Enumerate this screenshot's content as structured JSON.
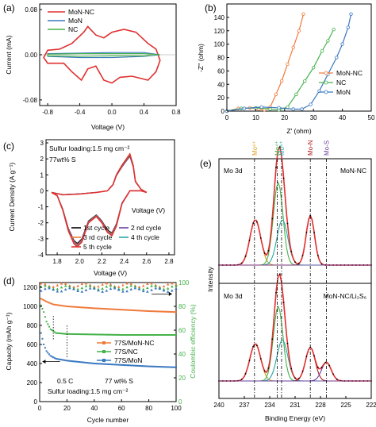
{
  "colors": {
    "red": "#e03030",
    "blue": "#3a78c0",
    "green": "#44b24a",
    "orange": "#f07a3c",
    "black": "#000000",
    "purple": "#6a3fa0",
    "teal": "#2aa5a5",
    "gold": "#e0a020",
    "darkred": "#b01818"
  },
  "chart_data": [
    {
      "id": "a",
      "panel_label": "(a)",
      "type": "line",
      "xlabel": "Voltage (V)",
      "ylabel": "Current (mA)",
      "xlim": [
        -0.9,
        0.8
      ],
      "ylim": [
        -0.09,
        0.09
      ],
      "x_ticks": [
        "-0.8",
        "-0.4",
        "0.0",
        "0.4",
        "0.8"
      ],
      "y_ticks": [
        "0.08",
        "0.00",
        "-0.08"
      ],
      "series": [
        {
          "name": "MoN-NC",
          "points": [
            [
              -0.8,
              -0.015
            ],
            [
              -0.6,
              -0.015
            ],
            [
              -0.5,
              -0.03
            ],
            [
              -0.38,
              -0.045
            ],
            [
              -0.3,
              -0.025
            ],
            [
              -0.2,
              -0.02
            ],
            [
              -0.1,
              -0.045
            ],
            [
              0.0,
              -0.05
            ],
            [
              0.1,
              -0.04
            ],
            [
              0.25,
              -0.038
            ],
            [
              0.45,
              -0.045
            ],
            [
              0.55,
              -0.03
            ],
            [
              0.6,
              -0.01
            ],
            [
              0.55,
              0.01
            ],
            [
              0.45,
              0.02
            ],
            [
              0.3,
              0.04
            ],
            [
              0.15,
              0.045
            ],
            [
              0.0,
              0.04
            ],
            [
              -0.1,
              0.03
            ],
            [
              -0.2,
              0.035
            ],
            [
              -0.3,
              0.05
            ],
            [
              -0.35,
              0.04
            ],
            [
              -0.5,
              0.02
            ],
            [
              -0.65,
              0.01
            ],
            [
              -0.8,
              0.008
            ],
            [
              -0.85,
              -0.005
            ],
            [
              -0.8,
              -0.015
            ]
          ]
        },
        {
          "name": "MoN",
          "points": [
            [
              -0.8,
              -0.003
            ],
            [
              -0.4,
              -0.005
            ],
            [
              0.0,
              -0.005
            ],
            [
              0.4,
              -0.003
            ],
            [
              0.6,
              0.0
            ],
            [
              0.4,
              0.004
            ],
            [
              0.0,
              0.004
            ],
            [
              -0.4,
              0.003
            ],
            [
              -0.8,
              0.002
            ],
            [
              -0.8,
              -0.003
            ]
          ]
        },
        {
          "name": "NC",
          "points": [
            [
              -0.8,
              -0.002
            ],
            [
              -0.4,
              -0.003
            ],
            [
              0.0,
              -0.002
            ],
            [
              0.4,
              -0.002
            ],
            [
              0.6,
              0.0
            ],
            [
              0.4,
              0.002
            ],
            [
              0.0,
              0.002
            ],
            [
              -0.4,
              0.002
            ],
            [
              -0.8,
              0.001
            ],
            [
              -0.8,
              -0.002
            ]
          ]
        }
      ]
    },
    {
      "id": "b",
      "panel_label": "(b)",
      "type": "line",
      "xlabel": "Z' (ohm)",
      "ylabel": "-Z'' (ohm)",
      "xlim": [
        0,
        50
      ],
      "ylim": [
        0,
        160
      ],
      "x_ticks": [
        "0",
        "10",
        "20",
        "30",
        "40",
        "50"
      ],
      "y_ticks": [
        "0",
        "20",
        "40",
        "60",
        "80",
        "100",
        "120",
        "140"
      ],
      "series": [
        {
          "name": "MoN-NC",
          "points": [
            [
              0,
              0
            ],
            [
              4,
              4
            ],
            [
              8,
              5
            ],
            [
              11,
              3
            ],
            [
              13,
              2
            ],
            [
              15,
              6
            ],
            [
              17,
              25
            ],
            [
              19,
              45
            ],
            [
              21,
              70
            ],
            [
              23,
              95
            ],
            [
              25,
              120
            ],
            [
              26.5,
              145
            ]
          ]
        },
        {
          "name": "NC",
          "points": [
            [
              0,
              0
            ],
            [
              5,
              4
            ],
            [
              10,
              5
            ],
            [
              15,
              3
            ],
            [
              18,
              2
            ],
            [
              21,
              6
            ],
            [
              24,
              25
            ],
            [
              27,
              45
            ],
            [
              30,
              65
            ],
            [
              33,
              90
            ],
            [
              35,
              105
            ],
            [
              37,
              122
            ]
          ]
        },
        {
          "name": "MoN",
          "points": [
            [
              0,
              0
            ],
            [
              6,
              4
            ],
            [
              12,
              6
            ],
            [
              18,
              5
            ],
            [
              23,
              3
            ],
            [
              26,
              3
            ],
            [
              29,
              10
            ],
            [
              32,
              30
            ],
            [
              35,
              55
            ],
            [
              38,
              80
            ],
            [
              40,
              100
            ],
            [
              42,
              125
            ],
            [
              43,
              145
            ]
          ]
        }
      ]
    },
    {
      "id": "c",
      "panel_label": "(c)",
      "type": "line",
      "xlabel": "Voltage (V)",
      "ylabel": "Current Density (A g⁻¹)",
      "xlim": [
        1.7,
        2.85
      ],
      "ylim": [
        -4,
        3.2
      ],
      "x_ticks": [
        "1.8",
        "2.0",
        "2.2",
        "2.4",
        "2.6",
        "2.8"
      ],
      "y_ticks": [
        "3",
        "2",
        "1",
        "0",
        "-1",
        "-2",
        "-3",
        "-4"
      ],
      "annotations": [
        "Sulfur loading:1.5 mg cm⁻²",
        "77wt% S",
        "Voltage (V)"
      ],
      "series": [
        {
          "name": "1st cycle"
        },
        {
          "name": "2 nd cycle"
        },
        {
          "name": "3 rd cycle"
        },
        {
          "name": "4 th cycle"
        },
        {
          "name": "5 th cycle"
        }
      ],
      "base_curve": [
        [
          1.75,
          -0.1
        ],
        [
          1.8,
          -0.3
        ],
        [
          1.85,
          -1.2
        ],
        [
          1.9,
          -2.5
        ],
        [
          1.95,
          -3.3
        ],
        [
          1.98,
          -3.5
        ],
        [
          2.02,
          -3.2
        ],
        [
          2.08,
          -2.0
        ],
        [
          2.15,
          -1.6
        ],
        [
          2.2,
          -2.0
        ],
        [
          2.25,
          -2.6
        ],
        [
          2.29,
          -2.8
        ],
        [
          2.33,
          -2.2
        ],
        [
          2.38,
          -0.8
        ],
        [
          2.45,
          0.0
        ],
        [
          2.55,
          0.0
        ],
        [
          2.6,
          -0.1
        ],
        [
          2.55,
          0.1
        ],
        [
          2.5,
          0.6
        ],
        [
          2.48,
          1.6
        ],
        [
          2.45,
          2.3
        ],
        [
          2.42,
          2.0
        ],
        [
          2.38,
          1.6
        ],
        [
          2.33,
          1.0
        ],
        [
          2.3,
          0.4
        ],
        [
          2.25,
          0.0
        ],
        [
          2.15,
          -0.1
        ],
        [
          2.0,
          -0.2
        ],
        [
          1.85,
          -0.25
        ],
        [
          1.75,
          -0.1
        ]
      ]
    },
    {
      "id": "d",
      "panel_label": "(d)",
      "type": "scatter",
      "xlabel": "Cycle number",
      "ylabel": "Capacity (mAh g⁻¹)",
      "y2label": "Coulombic efficiency (%)",
      "xlim": [
        0,
        100
      ],
      "ylim": [
        0,
        1250
      ],
      "y2lim": [
        0,
        100
      ],
      "x_ticks": [
        "0",
        "20",
        "40",
        "60",
        "80",
        "100"
      ],
      "y_ticks": [
        "0",
        "200",
        "400",
        "600",
        "800",
        "1000",
        "1200"
      ],
      "y2_ticks": [
        "0",
        "20",
        "40",
        "60",
        "80",
        "100"
      ],
      "annotations": [
        "0.5 C",
        "77 wt% S",
        "Sulfur loading:1.5 mg cm⁻²"
      ],
      "series": [
        {
          "name": "77S/MoN-NC",
          "capacity": [
            [
              1,
              1080
            ],
            [
              5,
              1050
            ],
            [
              10,
              1020
            ],
            [
              20,
              1000
            ],
            [
              40,
              980
            ],
            [
              60,
              965
            ],
            [
              80,
              950
            ],
            [
              100,
              940
            ]
          ],
          "efficiency": 98
        },
        {
          "name": "77S/NC",
          "capacity": [
            [
              1,
              1010
            ],
            [
              3,
              940
            ],
            [
              5,
              840
            ],
            [
              8,
              760
            ],
            [
              12,
              720
            ],
            [
              20,
              710
            ],
            [
              40,
              705
            ],
            [
              60,
              700
            ],
            [
              80,
              700
            ],
            [
              100,
              700
            ]
          ],
          "efficiency": 96
        },
        {
          "name": "77S/MoN",
          "capacity": [
            [
              1,
              720
            ],
            [
              3,
              600
            ],
            [
              5,
              530
            ],
            [
              8,
              480
            ],
            [
              12,
              450
            ],
            [
              20,
              430
            ],
            [
              40,
              400
            ],
            [
              60,
              385
            ],
            [
              80,
              370
            ],
            [
              100,
              360
            ]
          ],
          "efficiency": 94
        }
      ]
    },
    {
      "id": "e",
      "panel_label": "(e)",
      "type": "line",
      "xlabel": "Binding Energy (eV)",
      "ylabel": "Intensity",
      "xlim": [
        240,
        222
      ],
      "x_ticks": [
        "240",
        "237",
        "234",
        "231",
        "228",
        "225",
        "222"
      ],
      "top_labels": [
        "Mo⁶⁺",
        "Mo⁴⁺",
        "Mo⁶⁺",
        "Mo-N",
        "Mo-S"
      ],
      "top_label_positions_ev": [
        235.8,
        233.1,
        232.6,
        229.2,
        227.3
      ],
      "subpanels": [
        {
          "left_label": "Mo 3d",
          "right_label": "MoN-NC",
          "peaks": [
            [
              235.7,
              0.55,
              0.9
            ],
            [
              233.0,
              1.0,
              0.8
            ],
            [
              232.5,
              0.55,
              0.9
            ],
            [
              229.2,
              0.6,
              0.7
            ]
          ]
        },
        {
          "left_label": "Mo 3d",
          "right_label": "MoN-NC/Li₂S₆",
          "peaks": [
            [
              235.7,
              0.5,
              0.9
            ],
            [
              233.0,
              1.0,
              0.8
            ],
            [
              232.5,
              0.55,
              0.9
            ],
            [
              229.2,
              0.45,
              0.8
            ],
            [
              227.3,
              0.25,
              0.8
            ]
          ]
        }
      ]
    }
  ]
}
